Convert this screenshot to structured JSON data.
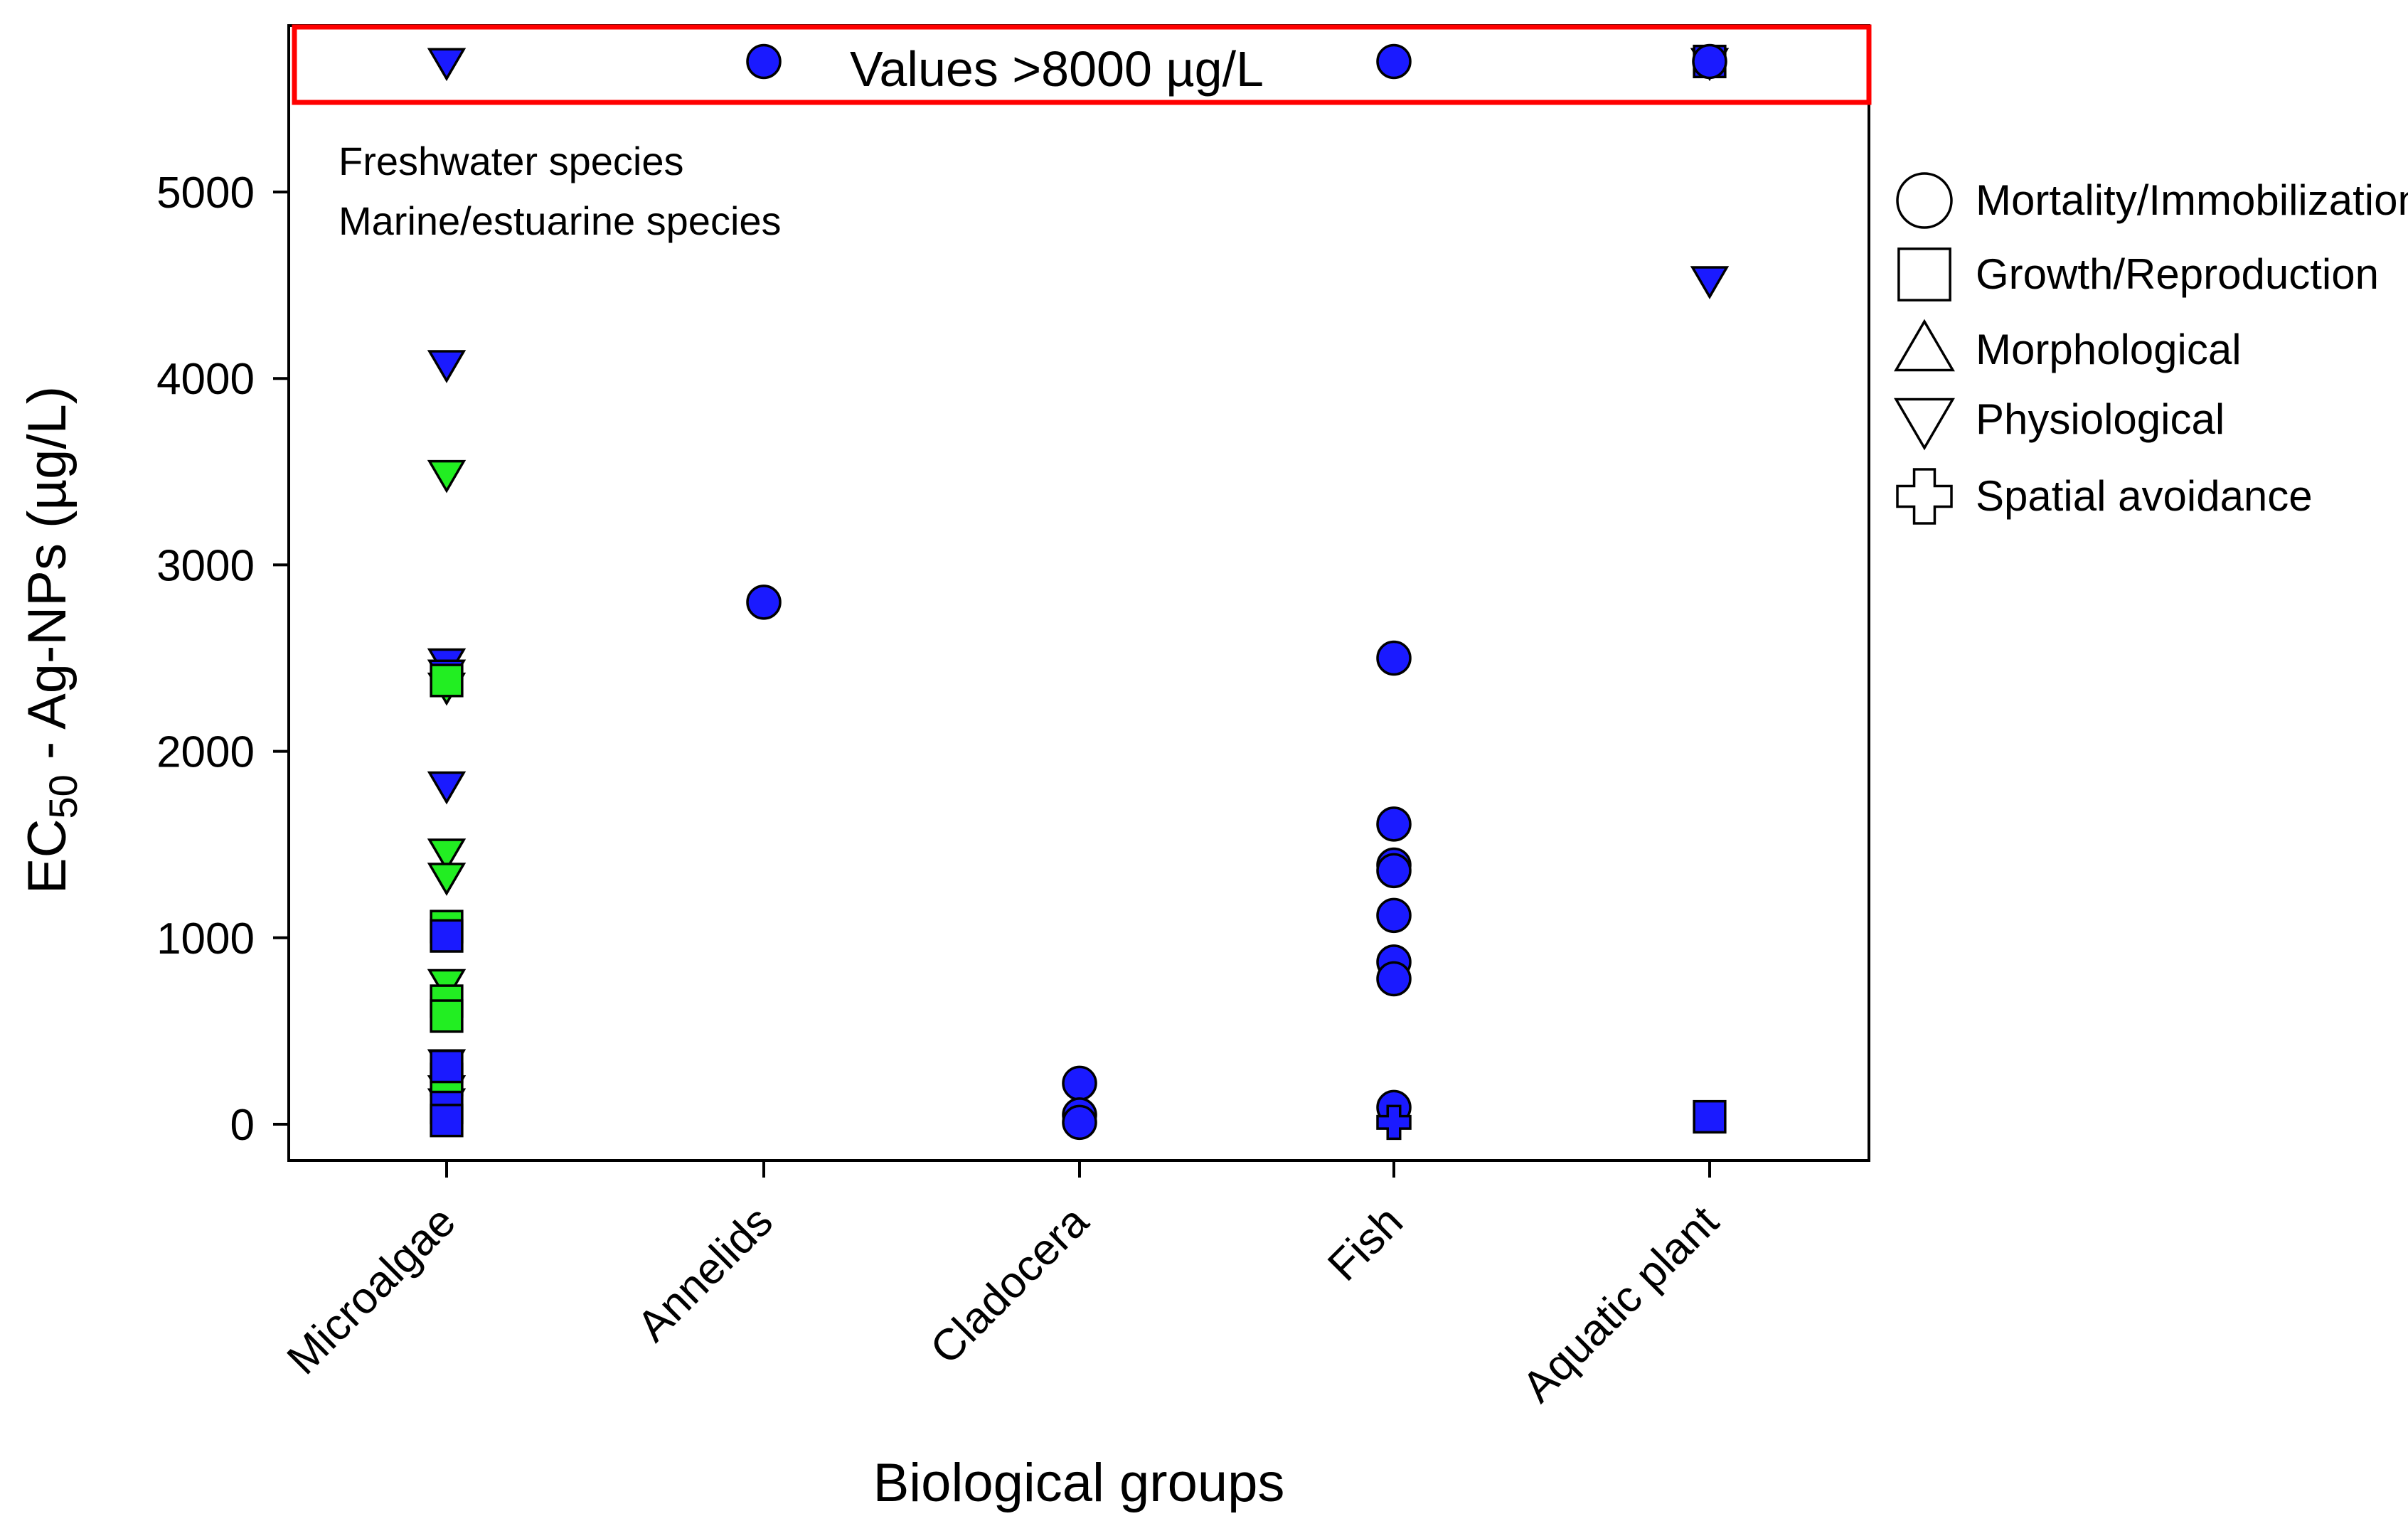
{
  "chart_data": {
    "type": "scatter",
    "title": "",
    "xlabel": "Biological groups",
    "ylabel": {
      "prefix": "EC",
      "subscript": "50",
      "suffix": " - Ag-NPs (µg/L)"
    },
    "ylim": [
      -200,
      5800
    ],
    "yticks": [
      0,
      1000,
      2000,
      3000,
      4000,
      5000
    ],
    "grid": false,
    "categories": [
      "Microalgae",
      "Annelids",
      "Cladocera",
      "Fish",
      "Aquatic plant"
    ],
    "overflow_banner": {
      "label": "Values >8000 µg/L",
      "plotted_at": 5700,
      "color": "#ff0000"
    },
    "habitat_note": [
      {
        "label": "Freshwater species",
        "color": "#0000ff"
      },
      {
        "label": "Marine/estuarine species",
        "color": "#00ff00"
      }
    ],
    "colors": {
      "freshwater": "#1a1aff",
      "marine": "#22ee22"
    },
    "legend": [
      {
        "shape": "circle",
        "label": "Mortality/Immobilization"
      },
      {
        "shape": "square",
        "label": "Growth/Reproduction"
      },
      {
        "shape": "triangle-up",
        "label": "Morphological"
      },
      {
        "shape": "triangle-down",
        "label": "Physiological"
      },
      {
        "shape": "cross",
        "label": "Spatial avoidance"
      }
    ],
    "series": [
      {
        "name": "Freshwater / Physiological",
        "habitat": "freshwater",
        "shape": "triangle-down",
        "points": [
          {
            "x": "Microalgae",
            "y": 5700
          },
          {
            "x": "Microalgae",
            "y": 4080
          },
          {
            "x": "Microalgae",
            "y": 2480
          },
          {
            "x": "Microalgae",
            "y": 2420
          },
          {
            "x": "Microalgae",
            "y": 1820
          },
          {
            "x": "Microalgae",
            "y": 330
          },
          {
            "x": "Microalgae",
            "y": 120
          },
          {
            "x": "Aquatic plant",
            "y": 4530
          },
          {
            "x": "Aquatic plant",
            "y": 5700
          }
        ]
      },
      {
        "name": "Marine / Physiological",
        "habitat": "marine",
        "shape": "triangle-down",
        "points": [
          {
            "x": "Microalgae",
            "y": 3490
          },
          {
            "x": "Microalgae",
            "y": 2350
          },
          {
            "x": "Microalgae",
            "y": 1460
          },
          {
            "x": "Microalgae",
            "y": 1330
          },
          {
            "x": "Microalgae",
            "y": 760
          },
          {
            "x": "Microalgae",
            "y": 190
          }
        ]
      },
      {
        "name": "Marine / Growth/Reproduction",
        "habitat": "marine",
        "shape": "square",
        "points": [
          {
            "x": "Microalgae",
            "y": 2380
          },
          {
            "x": "Microalgae",
            "y": 1060
          },
          {
            "x": "Microalgae",
            "y": 660
          },
          {
            "x": "Microalgae",
            "y": 580
          },
          {
            "x": "Microalgae",
            "y": 240
          }
        ]
      },
      {
        "name": "Freshwater / Growth/Reproduction",
        "habitat": "freshwater",
        "shape": "square",
        "points": [
          {
            "x": "Microalgae",
            "y": 1010
          },
          {
            "x": "Microalgae",
            "y": 310
          },
          {
            "x": "Microalgae",
            "y": 90
          },
          {
            "x": "Microalgae",
            "y": 20
          },
          {
            "x": "Aquatic plant",
            "y": 40
          },
          {
            "x": "Aquatic plant",
            "y": 5700
          }
        ]
      },
      {
        "name": "Freshwater / Mortality/Immobilization",
        "habitat": "freshwater",
        "shape": "circle",
        "points": [
          {
            "x": "Annelids",
            "y": 5700
          },
          {
            "x": "Annelids",
            "y": 2800
          },
          {
            "x": "Cladocera",
            "y": 220
          },
          {
            "x": "Cladocera",
            "y": 50
          },
          {
            "x": "Cladocera",
            "y": 10
          },
          {
            "x": "Fish",
            "y": 5700
          },
          {
            "x": "Fish",
            "y": 2500
          },
          {
            "x": "Fish",
            "y": 1610
          },
          {
            "x": "Fish",
            "y": 1390
          },
          {
            "x": "Fish",
            "y": 1360
          },
          {
            "x": "Fish",
            "y": 1120
          },
          {
            "x": "Fish",
            "y": 870
          },
          {
            "x": "Fish",
            "y": 780
          },
          {
            "x": "Fish",
            "y": 90
          },
          {
            "x": "Aquatic plant",
            "y": 5700
          }
        ]
      },
      {
        "name": "Freshwater / Spatial avoidance",
        "habitat": "freshwater",
        "shape": "cross",
        "points": [
          {
            "x": "Fish",
            "y": 10
          }
        ]
      }
    ]
  }
}
